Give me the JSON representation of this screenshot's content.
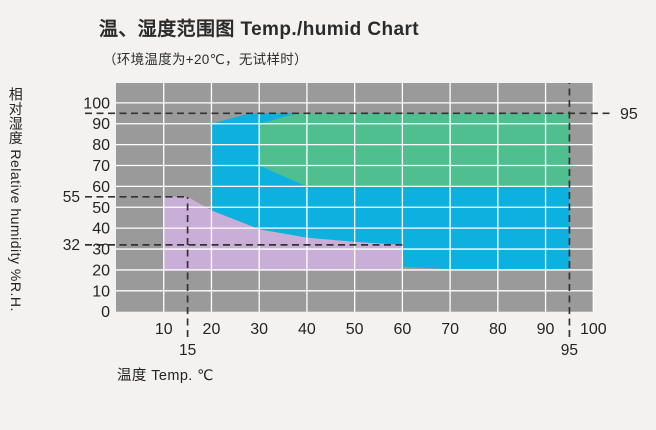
{
  "page": {
    "background": "#f3f2f0"
  },
  "title": "温、湿度范围图  Temp./humid Chart",
  "subtitle": "（环境温度为+20℃，无试样时）",
  "chart_data": {
    "type": "area",
    "title": "温、湿度范围图 Temp./humid Chart",
    "subtitle": "（环境温度为+20℃，无试样时）",
    "xlabel": "温度 Temp. ℃",
    "ylabel": "相对湿度 Relative humidity %R.H.",
    "xlim": [
      0,
      100
    ],
    "ylim": [
      0,
      109.5
    ],
    "x_ticks": [
      10,
      20,
      30,
      40,
      50,
      60,
      70,
      80,
      90,
      100
    ],
    "y_ticks": [
      0,
      10,
      20,
      30,
      40,
      50,
      60,
      70,
      80,
      90,
      100
    ],
    "grid": true,
    "colors": {
      "plot_background": "#9a9a9a",
      "grid": "#ffffff",
      "dash": "#333333",
      "purple_region": "#c9aed8",
      "cyan_region": "#0db1df",
      "green_region": "#4fbf8f"
    },
    "regions": [
      {
        "name": "low-humidity-range",
        "color": "#c9aed8",
        "points": [
          [
            10,
            55
          ],
          [
            15,
            55
          ],
          [
            20,
            48.5
          ],
          [
            30,
            39.5
          ],
          [
            40,
            35.5
          ],
          [
            50,
            33.5
          ],
          [
            60,
            32
          ],
          [
            60,
            20
          ],
          [
            10,
            20
          ]
        ]
      },
      {
        "name": "standard-temp-humidity-range",
        "color": "#0db1df",
        "points": [
          [
            20,
            90
          ],
          [
            28,
            95
          ],
          [
            95,
            95
          ],
          [
            95,
            20
          ],
          [
            73,
            20
          ],
          [
            60,
            21.5
          ],
          [
            60,
            32
          ],
          [
            50,
            33.5
          ],
          [
            40,
            35.5
          ],
          [
            30,
            39.5
          ],
          [
            20,
            48.5
          ]
        ]
      },
      {
        "name": "constant-temp-humidity-range",
        "color": "#4fbf8f",
        "points": [
          [
            30,
            70
          ],
          [
            30,
            90
          ],
          [
            38,
            95
          ],
          [
            95,
            95
          ],
          [
            95,
            60
          ],
          [
            40,
            60
          ]
        ]
      }
    ],
    "reference_lines": [
      {
        "id": "rh-95",
        "axis": "y",
        "value": 95,
        "to": 103.5,
        "label": "95",
        "label_side": "right"
      },
      {
        "id": "rh-55",
        "axis": "y",
        "value": 55,
        "to": 15,
        "label": "55",
        "label_side": "left"
      },
      {
        "id": "rh-32",
        "axis": "y",
        "value": 32,
        "to": 60,
        "label": "32",
        "label_side": "left"
      },
      {
        "id": "temp-15",
        "axis": "x",
        "value": 15,
        "to": 55,
        "label": "15"
      },
      {
        "id": "temp-95",
        "axis": "x",
        "value": 95,
        "to": 110,
        "label": "95"
      }
    ]
  }
}
